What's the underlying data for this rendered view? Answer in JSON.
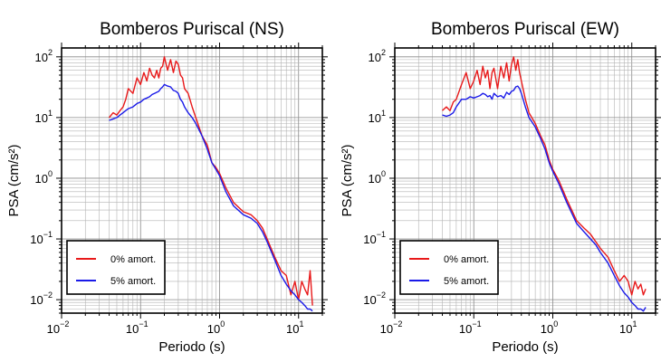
{
  "chart_data": [
    {
      "type": "line",
      "title": "Bomberos Puriscal (NS)",
      "xlabel": "Periodo (s)",
      "ylabel": "PSA (cm/s²)",
      "xscale": "log",
      "yscale": "log",
      "xlim": [
        0.01,
        20
      ],
      "ylim": [
        0.006,
        140
      ],
      "grid": true,
      "legend_placement": "bottom-left",
      "x_ticks": [
        {
          "base": "10",
          "exp": "−2"
        },
        {
          "base": "10",
          "exp": "−1"
        },
        {
          "base": "10",
          "exp": "0"
        },
        {
          "base": "10",
          "exp": "1"
        }
      ],
      "y_ticks": [
        {
          "base": "10",
          "exp": "−2"
        },
        {
          "base": "10",
          "exp": "−1"
        },
        {
          "base": "10",
          "exp": "0"
        },
        {
          "base": "10",
          "exp": "1"
        },
        {
          "base": "10",
          "exp": "2"
        }
      ],
      "series": [
        {
          "name": "0% amort.",
          "color": "#e8191a",
          "x": [
            0.04,
            0.045,
            0.05,
            0.055,
            0.06,
            0.065,
            0.07,
            0.08,
            0.09,
            0.1,
            0.11,
            0.12,
            0.13,
            0.14,
            0.15,
            0.16,
            0.17,
            0.18,
            0.19,
            0.2,
            0.22,
            0.24,
            0.26,
            0.28,
            0.3,
            0.32,
            0.34,
            0.36,
            0.4,
            0.45,
            0.5,
            0.6,
            0.7,
            0.8,
            0.9,
            1,
            1.2,
            1.5,
            2,
            2.5,
            3,
            3.5,
            4,
            5,
            6,
            7,
            8,
            9,
            10,
            11,
            12,
            13,
            14,
            15
          ],
          "y": [
            10,
            12,
            11,
            13,
            15,
            20,
            30,
            25,
            45,
            35,
            55,
            40,
            65,
            50,
            45,
            60,
            45,
            65,
            70,
            100,
            60,
            90,
            55,
            85,
            75,
            50,
            45,
            30,
            25,
            15,
            10,
            5,
            3.5,
            1.8,
            1.5,
            1.2,
            0.7,
            0.4,
            0.28,
            0.25,
            0.2,
            0.15,
            0.1,
            0.05,
            0.03,
            0.025,
            0.012,
            0.02,
            0.01,
            0.02,
            0.015,
            0.012,
            0.03,
            0.008
          ]
        },
        {
          "name": "5% amort.",
          "color": "#1a1ae8",
          "x": [
            0.04,
            0.045,
            0.05,
            0.055,
            0.06,
            0.065,
            0.07,
            0.08,
            0.09,
            0.1,
            0.11,
            0.12,
            0.13,
            0.14,
            0.15,
            0.16,
            0.17,
            0.18,
            0.19,
            0.2,
            0.22,
            0.24,
            0.26,
            0.28,
            0.3,
            0.32,
            0.34,
            0.36,
            0.4,
            0.45,
            0.5,
            0.6,
            0.7,
            0.8,
            0.9,
            1,
            1.2,
            1.5,
            2,
            2.5,
            3,
            3.5,
            4,
            5,
            6,
            7,
            8,
            9,
            10,
            11,
            12,
            13,
            14,
            15
          ],
          "y": [
            9,
            9.5,
            10,
            11,
            12,
            13,
            14,
            15,
            17,
            18,
            20,
            21,
            22,
            24,
            25,
            26,
            27,
            30,
            32,
            35,
            33,
            32,
            28,
            27,
            25,
            20,
            18,
            15,
            12,
            10,
            8,
            5,
            3,
            1.8,
            1.4,
            1.1,
            0.6,
            0.35,
            0.25,
            0.22,
            0.18,
            0.13,
            0.09,
            0.045,
            0.025,
            0.018,
            0.014,
            0.012,
            0.01,
            0.009,
            0.008,
            0.007,
            0.007,
            0.0065
          ]
        }
      ]
    },
    {
      "type": "line",
      "title": "Bomberos Puriscal (EW)",
      "xlabel": "Periodo (s)",
      "ylabel": "PSA (cm/s²)",
      "xscale": "log",
      "yscale": "log",
      "xlim": [
        0.01,
        20
      ],
      "ylim": [
        0.006,
        140
      ],
      "grid": true,
      "legend_placement": "bottom-left",
      "x_ticks": [
        {
          "base": "10",
          "exp": "−2"
        },
        {
          "base": "10",
          "exp": "−1"
        },
        {
          "base": "10",
          "exp": "0"
        },
        {
          "base": "10",
          "exp": "1"
        }
      ],
      "y_ticks": [
        {
          "base": "10",
          "exp": "−2"
        },
        {
          "base": "10",
          "exp": "−1"
        },
        {
          "base": "10",
          "exp": "0"
        },
        {
          "base": "10",
          "exp": "1"
        },
        {
          "base": "10",
          "exp": "2"
        }
      ],
      "series": [
        {
          "name": "0% amort.",
          "color": "#e8191a",
          "x": [
            0.04,
            0.045,
            0.05,
            0.055,
            0.06,
            0.07,
            0.08,
            0.09,
            0.1,
            0.11,
            0.12,
            0.13,
            0.14,
            0.15,
            0.16,
            0.17,
            0.18,
            0.2,
            0.22,
            0.24,
            0.26,
            0.28,
            0.3,
            0.32,
            0.34,
            0.36,
            0.38,
            0.4,
            0.45,
            0.5,
            0.6,
            0.7,
            0.8,
            0.9,
            1,
            1.2,
            1.5,
            2,
            2.5,
            3,
            3.5,
            4,
            5,
            6,
            7,
            8,
            9,
            10,
            11,
            12,
            13,
            14,
            15
          ],
          "y": [
            13,
            15,
            13,
            18,
            20,
            35,
            55,
            30,
            40,
            60,
            35,
            70,
            45,
            60,
            30,
            55,
            65,
            30,
            70,
            45,
            80,
            40,
            75,
            100,
            60,
            90,
            55,
            40,
            20,
            12,
            8,
            5,
            3.5,
            2,
            1.4,
            0.9,
            0.45,
            0.2,
            0.15,
            0.12,
            0.09,
            0.07,
            0.05,
            0.03,
            0.02,
            0.025,
            0.02,
            0.012,
            0.02,
            0.015,
            0.018,
            0.012,
            0.015
          ]
        },
        {
          "name": "5% amort.",
          "color": "#1a1ae8",
          "x": [
            0.04,
            0.045,
            0.05,
            0.055,
            0.06,
            0.07,
            0.08,
            0.09,
            0.1,
            0.11,
            0.12,
            0.13,
            0.14,
            0.15,
            0.16,
            0.17,
            0.18,
            0.2,
            0.22,
            0.24,
            0.26,
            0.28,
            0.3,
            0.32,
            0.34,
            0.36,
            0.38,
            0.4,
            0.45,
            0.5,
            0.6,
            0.7,
            0.8,
            0.9,
            1,
            1.2,
            1.5,
            2,
            2.5,
            3,
            3.5,
            4,
            5,
            6,
            7,
            8,
            9,
            10,
            11,
            12,
            13,
            14,
            15
          ],
          "y": [
            11,
            10.5,
            11,
            12,
            15,
            20,
            20,
            22,
            21,
            22,
            23,
            25,
            24,
            22,
            23,
            20,
            25,
            22,
            23,
            21,
            26,
            24,
            27,
            28,
            32,
            33,
            30,
            25,
            15,
            10,
            7,
            4.5,
            3,
            1.8,
            1.3,
            0.8,
            0.4,
            0.18,
            0.13,
            0.1,
            0.08,
            0.06,
            0.04,
            0.025,
            0.017,
            0.013,
            0.011,
            0.009,
            0.008,
            0.007,
            0.007,
            0.0065,
            0.0075
          ]
        }
      ]
    }
  ]
}
